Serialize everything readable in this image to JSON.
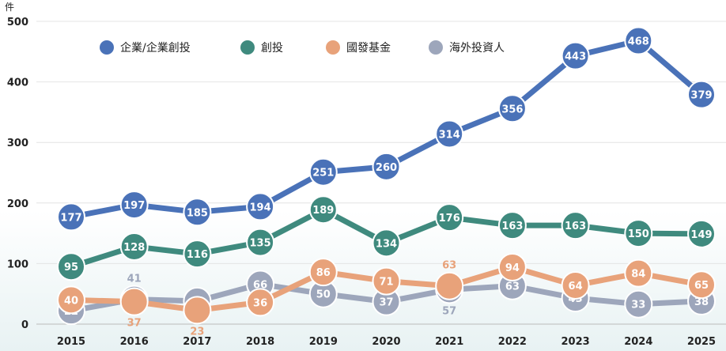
{
  "chart_data": {
    "type": "line",
    "y_unit": "件",
    "ylim": [
      0,
      500
    ],
    "y_ticks": [
      0,
      100,
      200,
      300,
      400,
      500
    ],
    "grid": "horizontal",
    "legend_position": "top",
    "x": [
      "2015",
      "2016",
      "2017",
      "2018",
      "2019",
      "2020",
      "2021",
      "2022",
      "2023",
      "2024",
      "2025"
    ],
    "series": [
      {
        "name": "企業/企業創投",
        "color": "#4a72b8",
        "values": [
          177,
          197,
          185,
          194,
          251,
          260,
          314,
          356,
          443,
          468,
          379
        ]
      },
      {
        "name": "創投",
        "color": "#3f8a7e",
        "values": [
          95,
          128,
          116,
          135,
          189,
          134,
          176,
          163,
          163,
          150,
          149
        ]
      },
      {
        "name": "國發基金",
        "color": "#e8a27a",
        "values": [
          40,
          37,
          23,
          36,
          86,
          71,
          63,
          94,
          64,
          84,
          65
        ]
      },
      {
        "name": "海外投資人",
        "color": "#9da6bb",
        "values": [
          22,
          41,
          38,
          66,
          50,
          37,
          57,
          63,
          43,
          33,
          38
        ]
      }
    ]
  }
}
